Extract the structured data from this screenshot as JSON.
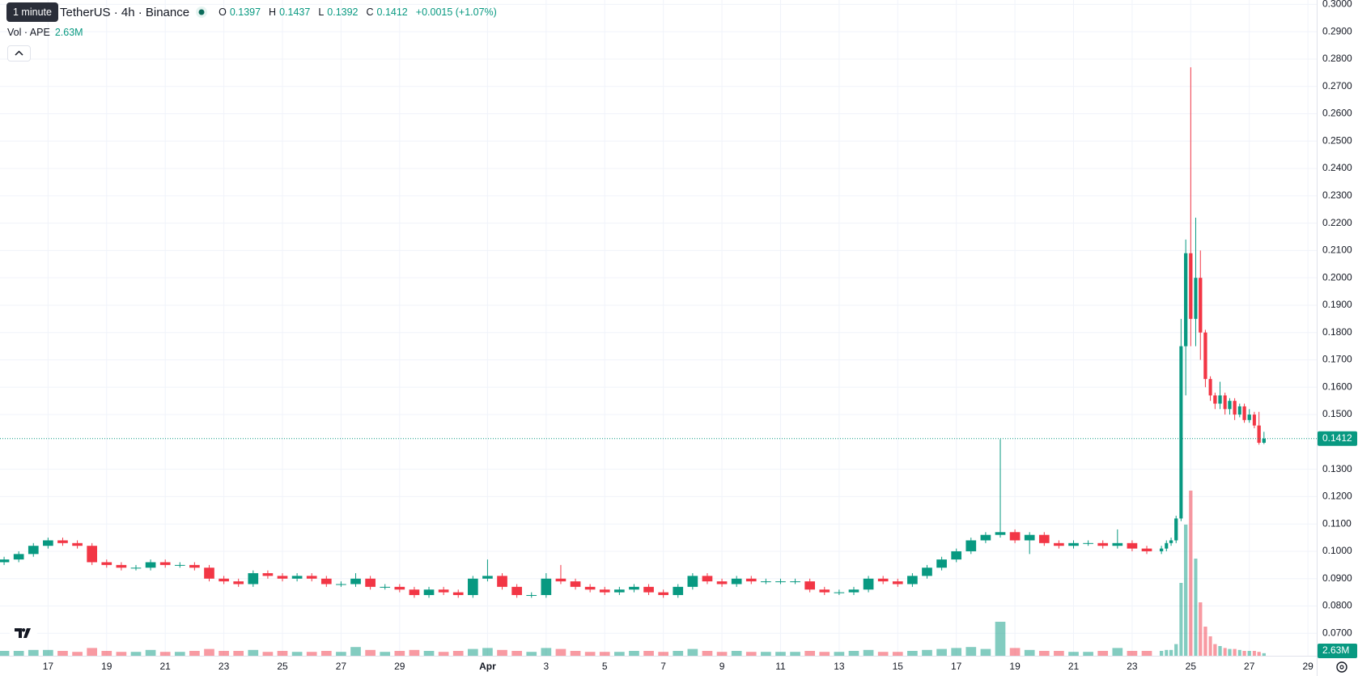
{
  "chart_data": {
    "type": "candlestick",
    "tooltip": "1 minute",
    "title": "TetherUS · 4h · Binance",
    "ohlc_labels": [
      "O",
      "H",
      "L",
      "C"
    ],
    "change": "+0.0015 (+1.07%)",
    "volume_title": "Vol · APE",
    "volume_value_label": "2.63M",
    "up_color": "#089981",
    "down_color": "#f23645",
    "grid": true,
    "xlim": [
      -1.64,
      43.3
    ],
    "ylim": [
      0.0618,
      0.3016
    ],
    "xticks": [
      {
        "value": 0,
        "label": "17"
      },
      {
        "value": 2,
        "label": "19"
      },
      {
        "value": 4,
        "label": "21"
      },
      {
        "value": 6,
        "label": "23"
      },
      {
        "value": 8,
        "label": "25"
      },
      {
        "value": 10,
        "label": "27"
      },
      {
        "value": 12,
        "label": "29"
      },
      {
        "value": 15,
        "label": "Apr"
      },
      {
        "value": 17,
        "label": "3"
      },
      {
        "value": 19,
        "label": "5"
      },
      {
        "value": 21,
        "label": "7"
      },
      {
        "value": 23,
        "label": "9"
      },
      {
        "value": 25,
        "label": "11"
      },
      {
        "value": 27,
        "label": "13"
      },
      {
        "value": 29,
        "label": "15"
      },
      {
        "value": 31,
        "label": "17"
      },
      {
        "value": 33,
        "label": "19"
      },
      {
        "value": 35,
        "label": "21"
      },
      {
        "value": 37,
        "label": "23"
      },
      {
        "value": 39,
        "label": "25"
      },
      {
        "value": 41,
        "label": "27"
      },
      {
        "value": 43,
        "label": "29"
      }
    ],
    "yticks": [
      {
        "value": 0.07,
        "label": "0.0700"
      },
      {
        "value": 0.08,
        "label": "0.0800"
      },
      {
        "value": 0.09,
        "label": "0.0900"
      },
      {
        "value": 0.1,
        "label": "0.1000"
      },
      {
        "value": 0.11,
        "label": "0.1100"
      },
      {
        "value": 0.12,
        "label": "0.1200"
      },
      {
        "value": 0.13,
        "label": "0.1300"
      },
      {
        "value": 0.15,
        "label": "0.1500"
      },
      {
        "value": 0.16,
        "label": "0.1600"
      },
      {
        "value": 0.17,
        "label": "0.1700"
      },
      {
        "value": 0.18,
        "label": "0.1800"
      },
      {
        "value": 0.19,
        "label": "0.1900"
      },
      {
        "value": 0.2,
        "label": "0.2000"
      },
      {
        "value": 0.21,
        "label": "0.2100"
      },
      {
        "value": 0.22,
        "label": "0.2200"
      },
      {
        "value": 0.23,
        "label": "0.2300"
      },
      {
        "value": 0.24,
        "label": "0.2400"
      },
      {
        "value": 0.25,
        "label": "0.2500"
      },
      {
        "value": 0.26,
        "label": "0.2600"
      },
      {
        "value": 0.27,
        "label": "0.2700"
      },
      {
        "value": 0.28,
        "label": "0.2800"
      },
      {
        "value": 0.29,
        "label": "0.2900"
      },
      {
        "value": 0.3,
        "label": "0.3000"
      }
    ],
    "x": [
      -1.5,
      -1,
      -0.5,
      0,
      0.5,
      1,
      1.5,
      2,
      2.5,
      3,
      3.5,
      4,
      4.5,
      5,
      5.5,
      6,
      6.5,
      7,
      7.5,
      8,
      8.5,
      9,
      9.5,
      10,
      10.5,
      11,
      11.5,
      12,
      12.5,
      13,
      13.5,
      14,
      14.5,
      15,
      15.5,
      16,
      16.5,
      17,
      17.5,
      18,
      18.5,
      19,
      19.5,
      20,
      20.5,
      21,
      21.5,
      22,
      22.5,
      23,
      23.5,
      24,
      24.5,
      25,
      25.5,
      26,
      26.5,
      27,
      27.5,
      28,
      28.5,
      29,
      29.5,
      30,
      30.5,
      31,
      31.5,
      32,
      32.5,
      33,
      33.5,
      34,
      34.5,
      35,
      35.5,
      36,
      36.5,
      37,
      37.5,
      38,
      38.17,
      38.33,
      38.5,
      38.67,
      38.83,
      39,
      39.17,
      39.33,
      39.5,
      39.67,
      39.83,
      40,
      40.17,
      40.33,
      40.5,
      40.67,
      40.83,
      41,
      41.17,
      41.33,
      41.5
    ],
    "open": [
      0.096,
      0.097,
      0.099,
      0.102,
      0.104,
      0.103,
      0.102,
      0.096,
      0.095,
      0.094,
      0.094,
      0.096,
      0.095,
      0.095,
      0.094,
      0.09,
      0.089,
      0.088,
      0.092,
      0.091,
      0.09,
      0.091,
      0.09,
      0.088,
      0.088,
      0.09,
      0.087,
      0.087,
      0.086,
      0.084,
      0.086,
      0.085,
      0.084,
      0.09,
      0.091,
      0.087,
      0.084,
      0.084,
      0.09,
      0.089,
      0.087,
      0.086,
      0.085,
      0.086,
      0.087,
      0.085,
      0.084,
      0.087,
      0.091,
      0.089,
      0.088,
      0.09,
      0.089,
      0.089,
      0.089,
      0.089,
      0.086,
      0.085,
      0.085,
      0.086,
      0.09,
      0.089,
      0.088,
      0.091,
      0.094,
      0.097,
      0.1,
      0.104,
      0.106,
      0.107,
      0.104,
      0.106,
      0.103,
      0.102,
      0.103,
      0.103,
      0.102,
      0.103,
      0.101,
      0.1,
      0.101,
      0.103,
      0.104,
      0.112,
      0.175,
      0.209,
      0.185,
      0.2,
      0.18,
      0.163,
      0.157,
      0.154,
      0.157,
      0.152,
      0.155,
      0.15,
      0.153,
      0.148,
      0.15,
      0.146,
      0.1397
    ],
    "high": [
      0.098,
      0.1,
      0.103,
      0.105,
      0.105,
      0.104,
      0.103,
      0.097,
      0.096,
      0.095,
      0.097,
      0.097,
      0.096,
      0.096,
      0.095,
      0.091,
      0.09,
      0.093,
      0.093,
      0.092,
      0.092,
      0.092,
      0.091,
      0.089,
      0.092,
      0.091,
      0.088,
      0.088,
      0.087,
      0.087,
      0.087,
      0.086,
      0.091,
      0.097,
      0.092,
      0.088,
      0.085,
      0.092,
      0.095,
      0.09,
      0.088,
      0.087,
      0.087,
      0.088,
      0.088,
      0.086,
      0.088,
      0.092,
      0.092,
      0.09,
      0.091,
      0.091,
      0.09,
      0.09,
      0.09,
      0.09,
      0.087,
      0.086,
      0.087,
      0.091,
      0.091,
      0.09,
      0.092,
      0.095,
      0.098,
      0.101,
      0.105,
      0.107,
      0.141,
      0.108,
      0.107,
      0.107,
      0.104,
      0.104,
      0.104,
      0.104,
      0.108,
      0.104,
      0.102,
      0.102,
      0.104,
      0.105,
      0.113,
      0.185,
      0.214,
      0.277,
      0.222,
      0.21,
      0.181,
      0.164,
      0.158,
      0.162,
      0.158,
      0.156,
      0.156,
      0.154,
      0.154,
      0.152,
      0.151,
      0.151,
      0.1437
    ],
    "low": [
      0.095,
      0.096,
      0.098,
      0.101,
      0.102,
      0.101,
      0.095,
      0.094,
      0.093,
      0.093,
      0.093,
      0.094,
      0.094,
      0.093,
      0.089,
      0.088,
      0.087,
      0.087,
      0.09,
      0.089,
      0.089,
      0.089,
      0.087,
      0.087,
      0.087,
      0.086,
      0.086,
      0.085,
      0.083,
      0.083,
      0.084,
      0.083,
      0.083,
      0.089,
      0.086,
      0.083,
      0.083,
      0.083,
      0.088,
      0.086,
      0.085,
      0.084,
      0.084,
      0.085,
      0.084,
      0.083,
      0.083,
      0.086,
      0.088,
      0.087,
      0.087,
      0.088,
      0.088,
      0.088,
      0.088,
      0.085,
      0.084,
      0.084,
      0.084,
      0.085,
      0.088,
      0.087,
      0.087,
      0.09,
      0.093,
      0.096,
      0.099,
      0.103,
      0.105,
      0.103,
      0.099,
      0.102,
      0.101,
      0.101,
      0.102,
      0.101,
      0.101,
      0.1,
      0.099,
      0.099,
      0.1,
      0.102,
      0.103,
      0.111,
      0.157,
      0.175,
      0.175,
      0.17,
      0.16,
      0.155,
      0.152,
      0.152,
      0.15,
      0.15,
      0.148,
      0.149,
      0.147,
      0.147,
      0.145,
      0.139,
      0.1392
    ],
    "close": [
      0.097,
      0.099,
      0.102,
      0.104,
      0.103,
      0.102,
      0.096,
      0.095,
      0.094,
      0.094,
      0.096,
      0.095,
      0.095,
      0.094,
      0.09,
      0.089,
      0.088,
      0.092,
      0.091,
      0.09,
      0.091,
      0.09,
      0.088,
      0.088,
      0.09,
      0.087,
      0.087,
      0.086,
      0.084,
      0.086,
      0.085,
      0.084,
      0.09,
      0.091,
      0.087,
      0.084,
      0.084,
      0.09,
      0.089,
      0.087,
      0.086,
      0.085,
      0.086,
      0.087,
      0.085,
      0.084,
      0.087,
      0.091,
      0.089,
      0.088,
      0.09,
      0.089,
      0.089,
      0.089,
      0.089,
      0.086,
      0.085,
      0.085,
      0.086,
      0.09,
      0.089,
      0.088,
      0.091,
      0.094,
      0.097,
      0.1,
      0.104,
      0.106,
      0.107,
      0.104,
      0.106,
      0.103,
      0.102,
      0.103,
      0.103,
      0.102,
      0.103,
      0.101,
      0.1,
      0.101,
      0.103,
      0.104,
      0.112,
      0.175,
      0.209,
      0.185,
      0.2,
      0.18,
      0.163,
      0.157,
      0.154,
      0.157,
      0.152,
      0.155,
      0.15,
      0.153,
      0.148,
      0.15,
      0.146,
      0.1397,
      0.1412
    ],
    "volume": [
      5,
      5,
      6,
      6,
      5,
      4,
      8,
      5,
      4,
      4,
      6,
      4,
      4,
      5,
      7,
      5,
      5,
      6,
      4,
      5,
      4,
      4,
      5,
      4,
      9,
      6,
      4,
      5,
      6,
      5,
      4,
      5,
      7,
      8,
      6,
      5,
      4,
      8,
      7,
      5,
      4,
      4,
      4,
      5,
      5,
      4,
      5,
      7,
      5,
      4,
      5,
      4,
      4,
      4,
      4,
      5,
      4,
      4,
      5,
      6,
      4,
      4,
      5,
      6,
      7,
      8,
      9,
      7,
      35,
      8,
      6,
      5,
      5,
      4,
      4,
      5,
      8,
      5,
      5,
      5,
      6,
      6,
      12,
      75,
      135,
      170,
      100,
      55,
      30,
      20,
      12,
      10,
      8,
      7,
      7,
      6,
      5,
      5,
      5,
      4,
      2.63
    ]
  }
}
